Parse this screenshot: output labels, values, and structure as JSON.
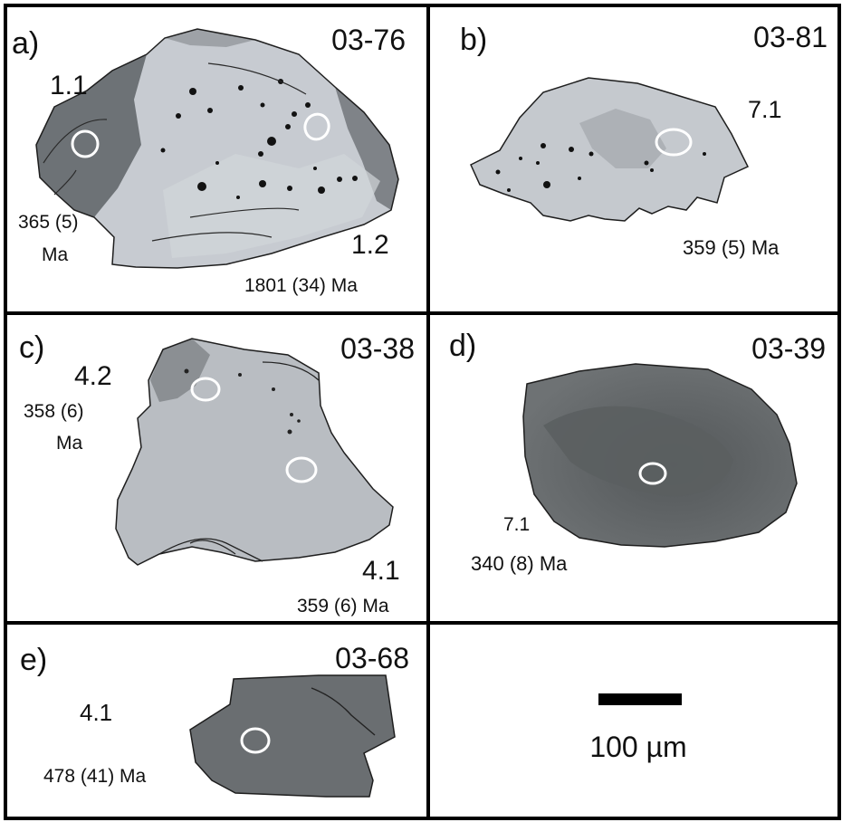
{
  "panels": [
    {
      "letter": "a)",
      "sample": "03-76",
      "spots": [
        {
          "id": "1.1",
          "age": [
            "365 (5)",
            "Ma"
          ]
        },
        {
          "id": "1.2",
          "age": [
            "1801 (34) Ma"
          ]
        }
      ]
    },
    {
      "letter": "b)",
      "sample": "03-81",
      "spots": [
        {
          "id": "7.1",
          "age": [
            "359 (5) Ma"
          ]
        }
      ]
    },
    {
      "letter": "c)",
      "sample": "03-38",
      "spots": [
        {
          "id": "4.2",
          "age": [
            "358 (6)",
            "Ma"
          ]
        },
        {
          "id": "4.1",
          "age": [
            "359 (6) Ma"
          ]
        }
      ]
    },
    {
      "letter": "d)",
      "sample": "03-39",
      "spots": [
        {
          "id": "7.1",
          "age": [
            "340 (8) Ma"
          ]
        }
      ]
    },
    {
      "letter": "e)",
      "sample": "03-68",
      "spots": [
        {
          "id": "4.1",
          "age": [
            "478 (41) Ma"
          ]
        }
      ]
    }
  ],
  "scale_bar": {
    "label": "100 µm"
  },
  "colors": {
    "border": "#000000",
    "grain_light": "#c9cdd3",
    "grain_mid": "#a9adb3",
    "grain_dark": "#6e7277",
    "grain_darker": "#5b5f62",
    "spot_ring": "#ffffff"
  }
}
